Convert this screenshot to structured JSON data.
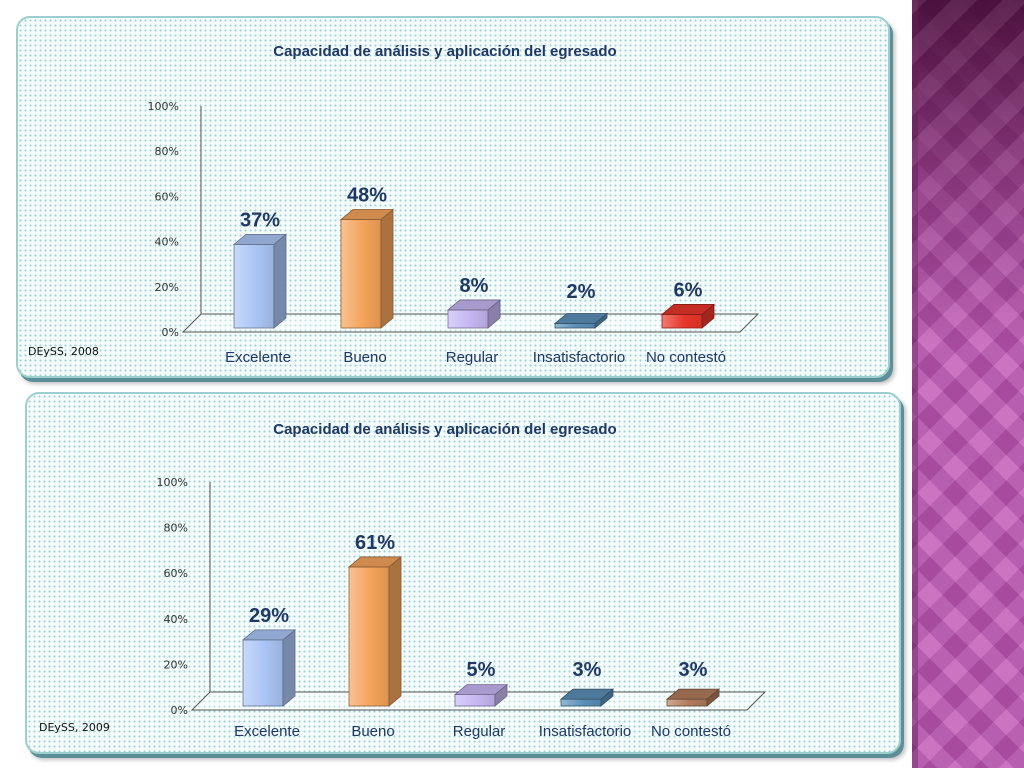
{
  "colors": {
    "excelente": "#a9c4f4",
    "bueno": "#f4a35a",
    "regular": "#c5b6f2",
    "insatisfactorio": "#5a8fb8",
    "no_contesto_2008": "#e8362a",
    "no_contesto_2009": "#b07a5a",
    "title": "#1f3864"
  },
  "chart_data": [
    {
      "type": "bar",
      "title": "Capacidad de análisis y aplicación del egresado",
      "source": "DEySS, 2008",
      "categories": [
        "Excelente",
        "Bueno",
        "Regular",
        "Insatisfactorio",
        "No contestó"
      ],
      "values": [
        37,
        48,
        8,
        2,
        6
      ],
      "value_labels": [
        "37%",
        "48%",
        "8%",
        "2%",
        "6%"
      ],
      "yticks": [
        "0%",
        "20%",
        "40%",
        "60%",
        "80%",
        "100%"
      ],
      "ylim": [
        0,
        100
      ],
      "grid": false,
      "legend": false
    },
    {
      "type": "bar",
      "title": "Capacidad de análisis y aplicación del egresado",
      "source": "DEySS, 2009",
      "categories": [
        "Excelente",
        "Bueno",
        "Regular",
        "Insatisfactorio",
        "No contestó"
      ],
      "values": [
        29,
        61,
        5,
        3,
        3
      ],
      "value_labels": [
        "29%",
        "61%",
        "5%",
        "3%",
        "3%"
      ],
      "yticks": [
        "0%",
        "20%",
        "40%",
        "60%",
        "80%",
        "100%"
      ],
      "ylim": [
        0,
        100
      ],
      "grid": false,
      "legend": false
    }
  ]
}
